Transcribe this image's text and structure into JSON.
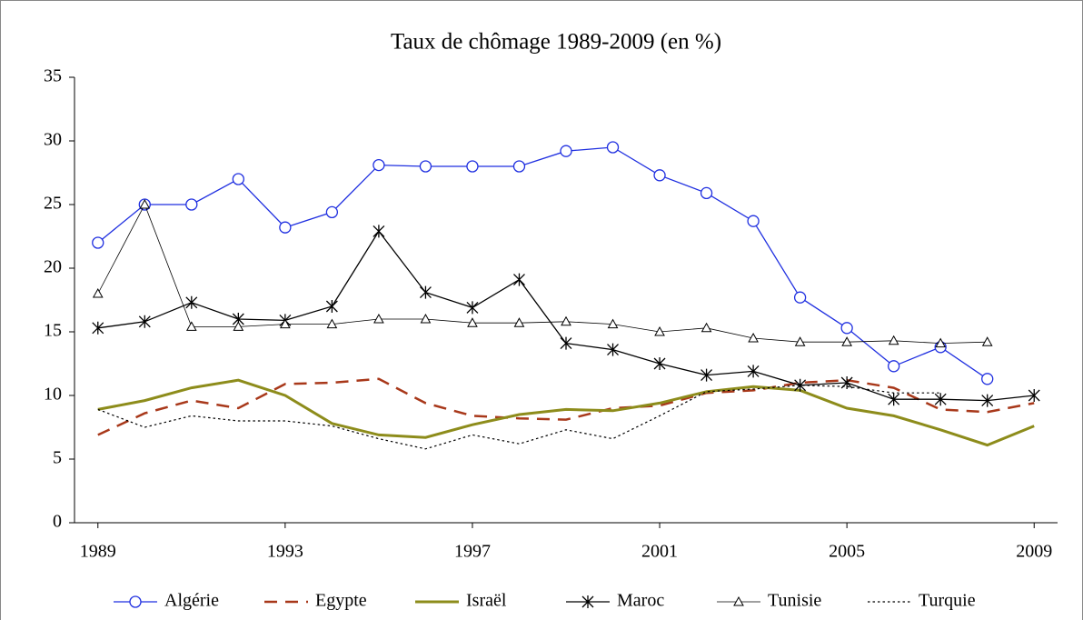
{
  "chart_data": {
    "type": "line",
    "title": "Taux de chômage 1989-2009 (en %)",
    "x": [
      1989,
      1990,
      1991,
      1992,
      1993,
      1994,
      1995,
      1996,
      1997,
      1998,
      1999,
      2000,
      2001,
      2002,
      2003,
      2004,
      2005,
      2006,
      2007,
      2008,
      2009
    ],
    "xlim": [
      1988.5,
      2009.5
    ],
    "xticks": [
      1989,
      1993,
      1997,
      2001,
      2005,
      2009
    ],
    "ylim": [
      0,
      35
    ],
    "yticks": [
      0,
      5,
      10,
      15,
      20,
      25,
      30,
      35
    ],
    "grid": false,
    "legend": "bottom",
    "series": [
      {
        "name": "Algérie",
        "color": "#1f2fe0",
        "marker": "circle",
        "dash": "solid",
        "width": 1.3,
        "values": [
          22,
          25,
          25,
          27,
          23.2,
          24.4,
          28.1,
          28,
          28,
          28,
          29.2,
          29.5,
          27.3,
          25.9,
          23.7,
          17.7,
          15.3,
          12.3,
          13.8,
          11.3,
          null
        ]
      },
      {
        "name": "Egypte",
        "color": "#a8381a",
        "marker": "none",
        "dash": "dash",
        "width": 2.5,
        "values": [
          6.9,
          8.6,
          9.6,
          9.0,
          10.9,
          11.0,
          11.3,
          9.4,
          8.4,
          8.2,
          8.1,
          9.0,
          9.2,
          10.2,
          10.4,
          11.0,
          11.2,
          10.6,
          8.9,
          8.7,
          9.4
        ]
      },
      {
        "name": "Israël",
        "color": "#8d8c1b",
        "marker": "none",
        "dash": "solid",
        "width": 3,
        "values": [
          8.9,
          9.6,
          10.6,
          11.2,
          10.0,
          7.8,
          6.9,
          6.7,
          7.7,
          8.5,
          8.9,
          8.8,
          9.4,
          10.3,
          10.7,
          10.4,
          9.0,
          8.4,
          7.3,
          6.1,
          7.6
        ]
      },
      {
        "name": "Maroc",
        "color": "#000000",
        "marker": "star",
        "dash": "solid",
        "width": 1.3,
        "values": [
          15.3,
          15.8,
          17.3,
          16.0,
          15.9,
          17.0,
          22.9,
          18.1,
          16.9,
          19.1,
          14.1,
          13.6,
          12.5,
          11.6,
          11.9,
          10.8,
          11.0,
          9.7,
          9.7,
          9.6,
          10.0
        ]
      },
      {
        "name": "Tunisie",
        "color": "#000000",
        "marker": "triangle",
        "dash": "solid",
        "width": 0.8,
        "values": [
          18.0,
          25.0,
          15.4,
          15.4,
          15.6,
          15.6,
          16.0,
          16.0,
          15.7,
          15.7,
          15.8,
          15.6,
          15.0,
          15.3,
          14.5,
          14.2,
          14.2,
          14.3,
          14.1,
          14.2,
          null
        ]
      },
      {
        "name": "Turquie",
        "color": "#000000",
        "marker": "none",
        "dash": "dot",
        "width": 1.2,
        "values": [
          8.9,
          7.5,
          8.4,
          8.0,
          8.0,
          7.6,
          6.6,
          5.8,
          6.9,
          6.2,
          7.3,
          6.6,
          8.4,
          10.3,
          10.5,
          10.8,
          10.7,
          10.2,
          10.2,
          null,
          null
        ]
      }
    ]
  }
}
